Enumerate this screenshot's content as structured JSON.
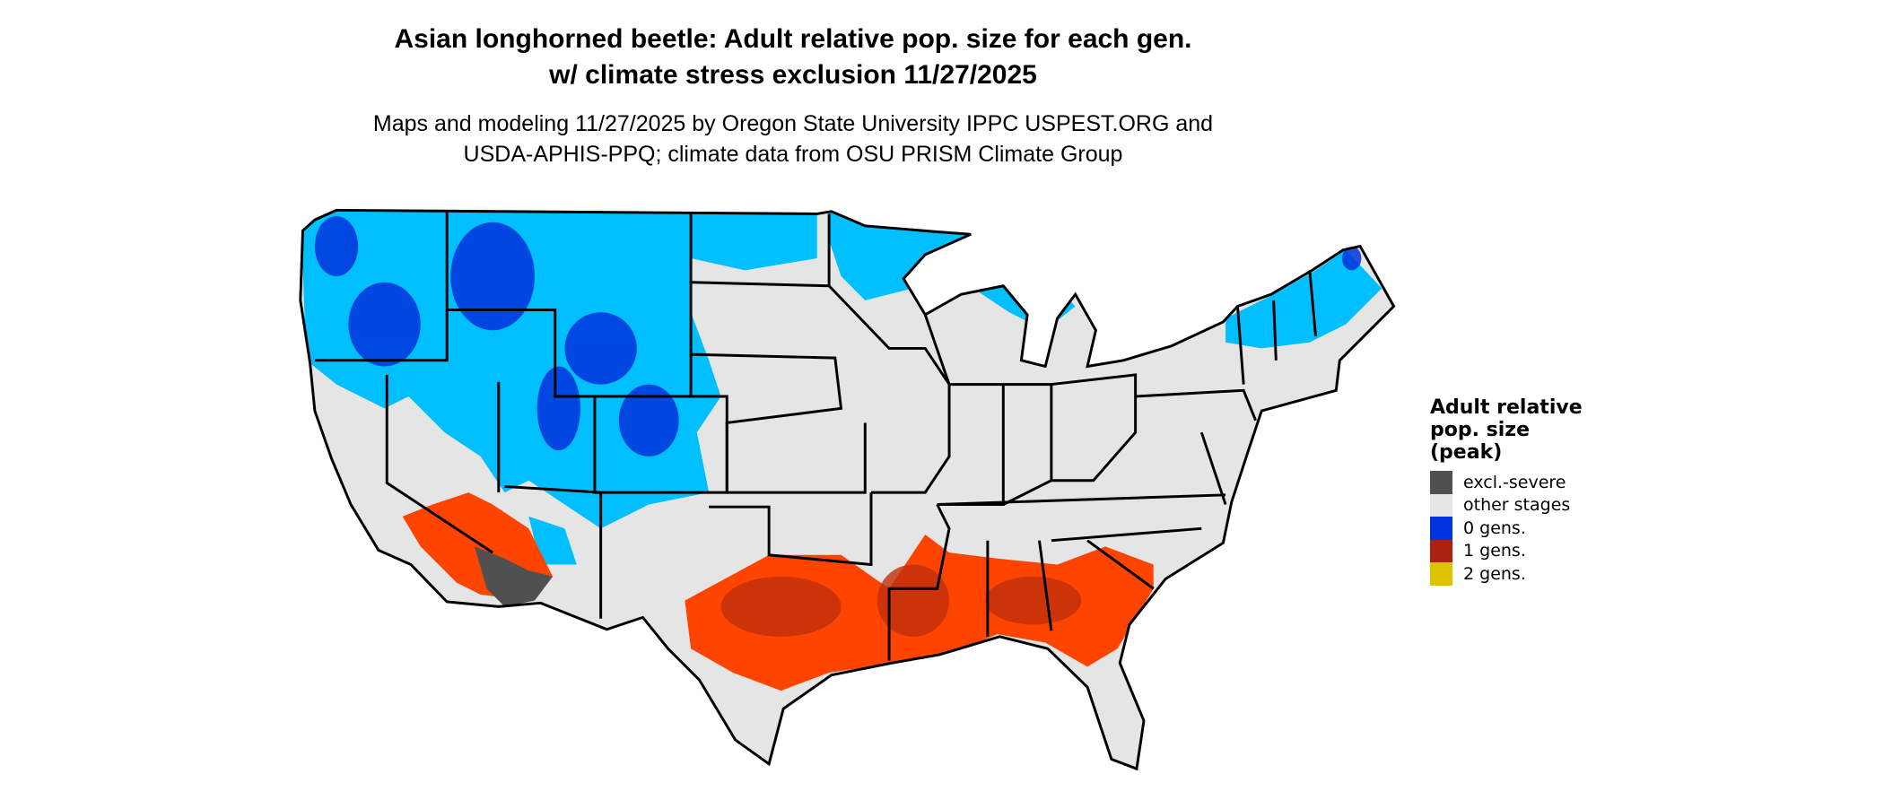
{
  "title": {
    "line1": "Asian longhorned beetle: Adult relative pop. size for each gen.",
    "line2": "w/ climate stress exclusion 11/27/2025"
  },
  "subtitle": {
    "line1": "Maps and modeling 11/27/2025 by Oregon State University IPPC USPEST.ORG and",
    "line2": "USDA-APHIS-PPQ; climate data from OSU PRISM Climate Group"
  },
  "legend": {
    "title_lines": [
      "Adult relative",
      "pop. size",
      "(peak)"
    ],
    "items": [
      {
        "label": "excl.-severe",
        "color": "#505050"
      },
      {
        "label": "other stages",
        "color": "#e5e5e5"
      },
      {
        "label": "0 gens.",
        "color": "#0033dd"
      },
      {
        "label": "1 gens.",
        "color": "#aa2211"
      },
      {
        "label": "2 gens.",
        "color": "#dcc400"
      }
    ]
  },
  "map": {
    "region": "contiguous United States",
    "colors": {
      "background": "#e5e5e5",
      "zero_gens_light": "#00bfff",
      "zero_gens_dark": "#0033dd",
      "one_gen_light": "#ff4400",
      "one_gen_dark": "#c0300a",
      "excluded": "#505050",
      "borders": "#000000"
    }
  }
}
